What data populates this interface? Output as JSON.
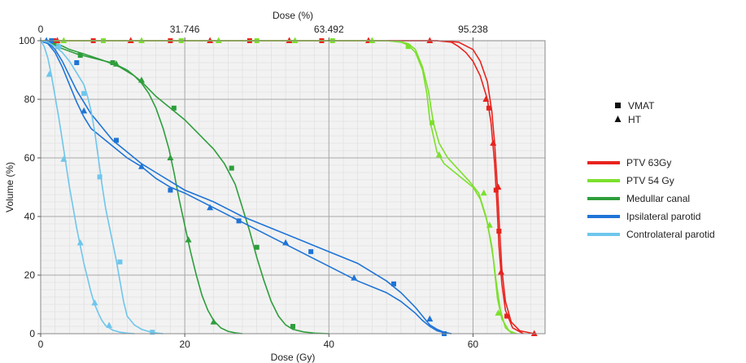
{
  "chart_data": {
    "type": "line",
    "xlabel": "Dose (Gy)",
    "ylabel": "Volume (%)",
    "top_xlabel": "Dose (%)",
    "xlim": [
      0,
      70
    ],
    "ylim": [
      0,
      100
    ],
    "x_ticks": [
      0,
      20,
      40,
      60
    ],
    "y_ticks": [
      0,
      20,
      40,
      60,
      80,
      100
    ],
    "top_ticks": [
      {
        "label": "0",
        "dose": 0
      },
      {
        "label": "31.746",
        "dose": 20
      },
      {
        "label": "63.492",
        "dose": 40
      },
      {
        "label": "95.238",
        "dose": 60
      }
    ],
    "grid": true,
    "legend_markers": [
      {
        "label": "VMAT",
        "marker": "square"
      },
      {
        "label": "HT",
        "marker": "triangle"
      }
    ],
    "series": [
      {
        "name": "PTV 63Gy",
        "color": "#e8231e",
        "vmat": {
          "x": [
            0,
            5,
            10,
            20,
            30,
            40,
            50,
            55,
            57,
            58,
            59,
            60,
            61,
            62,
            62.5,
            63,
            63.3,
            63.6,
            64,
            64.5,
            65.5,
            67
          ],
          "y": [
            100,
            100,
            100,
            100,
            100,
            100,
            100,
            100,
            99.5,
            98,
            96,
            93,
            88,
            80,
            72,
            58,
            45,
            30,
            17,
            8,
            2,
            0
          ]
        },
        "ht": {
          "x": [
            0,
            5,
            10,
            20,
            30,
            40,
            50,
            55,
            58,
            60,
            61,
            62,
            62.6,
            63,
            63.4,
            63.7,
            64,
            64.5,
            65.3,
            66.5,
            68.5
          ],
          "y": [
            100,
            100,
            100,
            100,
            100,
            100,
            100,
            100,
            99.5,
            97,
            93,
            86,
            76,
            65,
            50,
            35,
            22,
            11,
            4,
            1,
            0
          ]
        },
        "vmat_markers": [
          [
            1.8,
            100
          ],
          [
            7.3,
            100
          ],
          [
            18,
            100
          ],
          [
            29,
            100
          ],
          [
            39,
            100
          ],
          [
            62.2,
            77
          ],
          [
            63.2,
            49
          ],
          [
            63.6,
            35
          ],
          [
            64.7,
            6
          ]
        ],
        "ht_markers": [
          [
            2.3,
            100
          ],
          [
            12.5,
            100
          ],
          [
            23.5,
            100
          ],
          [
            34.5,
            100
          ],
          [
            45.5,
            100
          ],
          [
            54,
            100
          ],
          [
            61.8,
            80
          ],
          [
            62.8,
            65
          ],
          [
            63.5,
            50
          ],
          [
            63.9,
            21
          ],
          [
            68.5,
            0
          ]
        ]
      },
      {
        "name": "PTV 54 Gy",
        "color": "#7ce02c",
        "vmat": {
          "x": [
            0,
            10,
            20,
            30,
            40,
            48,
            50,
            51,
            52,
            53,
            53.6,
            54,
            55,
            56,
            58,
            60,
            61,
            62,
            62.8,
            63.4,
            64,
            65,
            66
          ],
          "y": [
            100,
            100,
            100,
            100,
            100,
            100,
            99.5,
            98.5,
            96,
            90,
            82,
            73,
            62,
            58,
            54,
            50,
            46,
            38,
            26,
            12,
            5,
            1,
            0
          ]
        },
        "ht": {
          "x": [
            0,
            10,
            20,
            30,
            40,
            48,
            50,
            51,
            52,
            53,
            53.8,
            54.5,
            55.3,
            56.5,
            58,
            59.5,
            60.8,
            61.8,
            62.6,
            63.2,
            63.8,
            64.5,
            65.5
          ],
          "y": [
            100,
            100,
            100,
            100,
            100,
            100,
            99.6,
            99,
            97,
            91,
            83,
            72,
            65,
            60,
            56,
            52,
            48,
            40,
            30,
            18,
            8,
            2,
            0
          ]
        },
        "vmat_markers": [
          [
            8.7,
            100
          ],
          [
            19.5,
            100
          ],
          [
            30,
            100
          ],
          [
            40.5,
            100
          ],
          [
            51,
            98
          ],
          [
            54.3,
            72
          ]
        ],
        "ht_markers": [
          [
            3.2,
            100
          ],
          [
            14,
            100
          ],
          [
            24.7,
            100
          ],
          [
            35.3,
            100
          ],
          [
            46,
            100
          ],
          [
            55.3,
            61
          ],
          [
            61.5,
            48
          ],
          [
            62.3,
            37
          ],
          [
            63.5,
            7
          ]
        ]
      },
      {
        "name": "Medullar canal",
        "color": "#2e9e3c",
        "vmat": {
          "x": [
            0,
            1,
            2,
            3,
            5,
            8,
            10,
            12,
            14,
            16,
            18,
            20,
            22,
            24,
            25.5,
            27,
            28,
            29,
            30,
            31,
            32,
            33,
            34,
            35,
            36.5,
            38,
            40
          ],
          "y": [
            100,
            99.5,
            98.5,
            97.3,
            95.5,
            93.6,
            92.4,
            90,
            86,
            81,
            77,
            73,
            68,
            63,
            58,
            51,
            43,
            35,
            26,
            18,
            11,
            6,
            3,
            1.5,
            0.6,
            0.2,
            0
          ]
        },
        "ht": {
          "x": [
            0,
            1,
            2,
            3,
            4,
            6,
            9,
            11,
            13,
            14,
            15,
            16,
            17,
            17.8,
            18.5,
            19.2,
            20,
            20.8,
            21.6,
            22.4,
            23.2,
            24,
            25,
            26,
            27,
            28
          ],
          "y": [
            100,
            99.6,
            99,
            98.2,
            97,
            95.5,
            93,
            91,
            88,
            85.5,
            82,
            77,
            70,
            63,
            55,
            46,
            37,
            28,
            20,
            13,
            8,
            4.5,
            2,
            0.8,
            0.3,
            0
          ]
        },
        "vmat_markers": [
          [
            5.5,
            95
          ],
          [
            10,
            92.5
          ],
          [
            18.5,
            77
          ],
          [
            26.5,
            56.5
          ],
          [
            30,
            29.5
          ],
          [
            35,
            2.5
          ]
        ],
        "ht_markers": [
          [
            2.5,
            98
          ],
          [
            10.5,
            92
          ],
          [
            14,
            86.5
          ],
          [
            18,
            60
          ],
          [
            20.5,
            32
          ],
          [
            24,
            4
          ]
        ]
      },
      {
        "name": "Ipsilateral parotid",
        "color": "#1f74d6",
        "vmat": {
          "x": [
            0,
            1,
            2,
            3,
            4,
            5,
            6,
            7,
            8,
            9,
            10,
            12,
            14,
            16,
            18,
            20,
            24,
            28,
            32,
            36,
            40,
            44,
            48,
            50,
            52,
            53,
            54,
            55,
            56,
            57
          ],
          "y": [
            100,
            99.5,
            97,
            93,
            88,
            83,
            79,
            75,
            72,
            69,
            66,
            62,
            58,
            55,
            52,
            49,
            45,
            40,
            36,
            32,
            28,
            24,
            18,
            14,
            9,
            6,
            3,
            1.5,
            0.5,
            0
          ],
          "dash": true
        },
        "ht": {
          "x": [
            0,
            1,
            2,
            3,
            4,
            5,
            6,
            7,
            8,
            9,
            10,
            12,
            14,
            16,
            18,
            20,
            24,
            28,
            32,
            36,
            40,
            44,
            48,
            50,
            52,
            53,
            54,
            55,
            56,
            57
          ],
          "y": [
            100,
            99,
            96,
            91,
            85,
            79,
            74,
            70,
            68,
            66,
            64,
            60,
            57,
            53,
            50,
            48,
            43,
            38,
            33,
            28,
            23,
            18,
            14,
            11,
            7,
            4.5,
            2.5,
            1,
            0.3,
            0
          ]
        },
        "vmat_markers": [
          [
            1.5,
            100
          ],
          [
            5,
            92.5
          ],
          [
            10.5,
            66
          ],
          [
            18,
            49
          ],
          [
            27.5,
            38.5
          ],
          [
            37.5,
            28
          ],
          [
            49,
            17
          ],
          [
            56,
            0
          ]
        ],
        "ht_markers": [
          [
            0.8,
            100
          ],
          [
            6,
            76
          ],
          [
            14,
            57
          ],
          [
            23.5,
            43
          ],
          [
            34,
            31
          ],
          [
            43.5,
            19
          ],
          [
            54,
            5
          ]
        ]
      },
      {
        "name": "Controlateral parotid",
        "color": "#6ec6ec",
        "vmat": {
          "x": [
            0,
            1,
            2,
            3,
            4,
            5,
            6,
            6.5,
            7,
            7.5,
            8,
            8.5,
            9,
            9.5,
            10,
            10.5,
            11,
            11.5,
            12,
            13,
            14,
            15.5,
            17
          ],
          "y": [
            100,
            99.5,
            98,
            96,
            93,
            89,
            85,
            81,
            76,
            69,
            60,
            51,
            43,
            37,
            31,
            25,
            18,
            11,
            6,
            3,
            1.5,
            0.4,
            0
          ]
        },
        "ht": {
          "x": [
            0,
            0.5,
            1,
            1.5,
            2,
            2.5,
            3,
            3.5,
            4,
            4.5,
            5,
            5.5,
            6,
            6.5,
            7,
            7.5,
            8,
            8.5,
            9,
            10,
            11,
            12,
            13
          ],
          "y": [
            100,
            98,
            94,
            88,
            81,
            74,
            66,
            58,
            50,
            43,
            36,
            30,
            24,
            19,
            14,
            10,
            7,
            4.5,
            2.8,
            1.2,
            0.5,
            0.2,
            0
          ]
        },
        "vmat_markers": [
          [
            2.5,
            98
          ],
          [
            6,
            82
          ],
          [
            8.2,
            53.5
          ],
          [
            11,
            24.5
          ],
          [
            15.5,
            0.5
          ]
        ],
        "ht_markers": [
          [
            1.2,
            88.5
          ],
          [
            3.2,
            59.5
          ],
          [
            5.5,
            31
          ],
          [
            7.5,
            10.5
          ],
          [
            9.5,
            2.8
          ]
        ]
      }
    ]
  }
}
